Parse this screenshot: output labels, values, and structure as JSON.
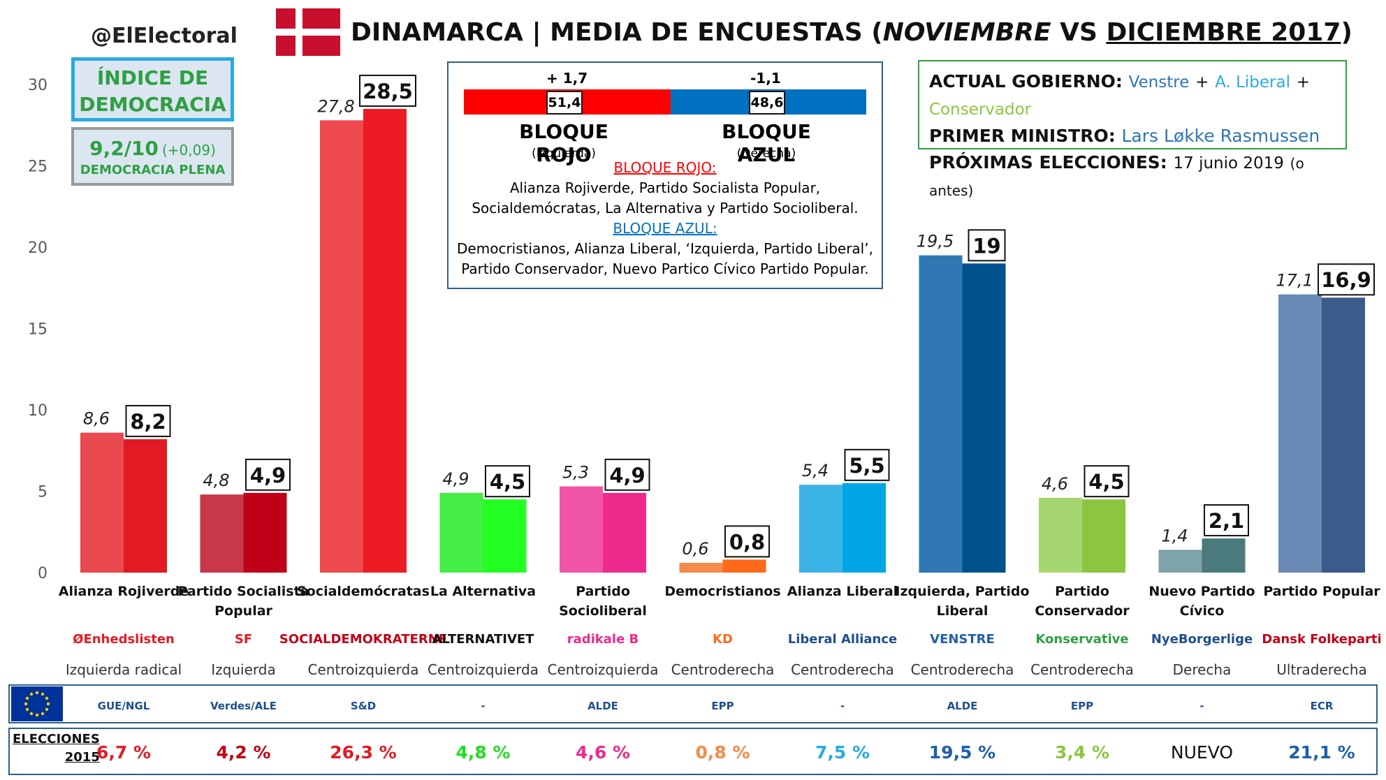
{
  "header": {
    "handle": "@ElElectoral",
    "title_main": "DINAMARCA | MEDIA DE ENCUESTAS (",
    "title_nov": "NOVIEMBRE",
    "title_vs": " VS ",
    "title_dec": "DICIEMBRE 2017",
    "title_close": ")"
  },
  "democracy": {
    "title": "ÍNDICE DE DEMOCRACIA",
    "score": "9,2/10",
    "delta": "(+0,09)",
    "label": "DEMOCRACIA PLENA"
  },
  "blocs": {
    "red_change": "+ 1,7",
    "blue_change": "-1,1",
    "red_value": "51,4",
    "blue_value": "48,6",
    "red_share": 51.4,
    "red_name": "BLOQUE ROJO",
    "blue_name": "BLOQUE AZUL",
    "red_sub": "(Izquierda)",
    "blue_sub": "(Derecha)",
    "red_heading": "BLOQUE ROJO:",
    "red_members_1": "Alianza Rojiverde, Partido Socialista Popular,",
    "red_members_2": "Socialdemócratas, La Alternativa y Partido Socioliberal.",
    "blue_heading": "BLOQUE AZUL:",
    "blue_members_1": "Democristianos, Alianza Liberal, ‘Izquierda, Partido Liberal’,",
    "blue_members_2": "Partido Conservador, Nuevo Partico Cívico Partido Popular.",
    "red_color": "#ff0000",
    "blue_color": "#0070c0"
  },
  "government": {
    "gov_label": "ACTUAL GOBIERNO:",
    "gov_p1": "Venstre",
    "gov_plus": "+",
    "gov_p2": "A. Liberal",
    "gov_p3": "Conservador",
    "pm_label": "PRIMER MINISTRO:",
    "pm_name": "Lars Løkke Rasmussen",
    "next_label": "PRÓXIMAS ELECCIONES:",
    "next_date": "17 junio 2019",
    "next_note": "(o antes)"
  },
  "chart_data": {
    "type": "bar",
    "ylim": [
      0,
      30
    ],
    "yticks": [
      0,
      5,
      10,
      15,
      20,
      25,
      30
    ],
    "categories": [
      [
        "Alianza Rojiverde"
      ],
      [
        "Partido Socialista",
        "Popular"
      ],
      [
        "Socialdemócratas"
      ],
      [
        "La Alternativa"
      ],
      [
        "Partido",
        "Socioliberal"
      ],
      [
        "Democristianos"
      ],
      [
        "Alianza Liberal"
      ],
      [
        "Izquierda, Partido",
        "Liberal"
      ],
      [
        "Partido",
        "Conservador"
      ],
      [
        "Nuevo Partido",
        "Cívico"
      ],
      [
        "Partido Popular"
      ]
    ],
    "series": [
      {
        "name": "NOVIEMBRE",
        "values": [
          8.6,
          4.8,
          27.8,
          4.9,
          5.3,
          0.6,
          5.4,
          19.5,
          4.6,
          1.4,
          17.1
        ],
        "labels": [
          "8,6",
          "4,8",
          "27,8",
          "4,9",
          "5,3",
          "0,6",
          "5,4",
          "19,5",
          "4,6",
          "1,4",
          "17,1"
        ]
      },
      {
        "name": "DICIEMBRE 2017",
        "values": [
          8.2,
          4.9,
          28.5,
          4.5,
          4.9,
          0.8,
          5.5,
          19.0,
          4.5,
          2.1,
          16.9
        ],
        "labels": [
          "8,2",
          "4,9",
          "28,5",
          "4,5",
          "4,9",
          "0,8",
          "5,5",
          "19",
          "4,5",
          "2,1",
          "16,9"
        ]
      }
    ],
    "colors_nov": [
      "#e84a4f",
      "#c8374a",
      "#ee4a4e",
      "#44ee44",
      "#f055a8",
      "#f58a4a",
      "#3db4e8",
      "#2f78b4",
      "#a6d672",
      "#7ea3a8",
      "#6a88b4"
    ],
    "colors_dec": [
      "#e21a24",
      "#c00018",
      "#ed1c24",
      "#22ff22",
      "#ee2a8c",
      "#ff6a1a",
      "#00a6e4",
      "#00528c",
      "#8cc63f",
      "#4a7a7c",
      "#3b5b8c"
    ],
    "logos": [
      "ØEnhedslisten",
      "SF",
      "SOCIALDEMOKRATERNE",
      "ALTERNATIVET",
      "radikale B",
      "KD",
      "Liberal Alliance",
      "VENSTRE",
      "Konservative",
      "NyeBorgerlige",
      "Dansk Folkeparti"
    ],
    "logo_colors": [
      "#e21a24",
      "#e21a24",
      "#c00018",
      "#111111",
      "#ee2a8c",
      "#ff6a1a",
      "#1f4f8c",
      "#1f5fa8",
      "#2ea043",
      "#1f4f8c",
      "#c00018"
    ],
    "ideology": [
      "Izquierda radical",
      "Izquierda",
      "Centroizquierda",
      "Centroizquierda",
      "Centroizquierda",
      "Centroderecha",
      "Centroderecha",
      "Centroderecha",
      "Centroderecha",
      "Derecha",
      "Ultraderecha"
    ],
    "eu_groups": [
      "GUE/NGL",
      "Verdes/ALE",
      "S&D",
      "-",
      "ALDE",
      "EPP",
      "-",
      "ALDE",
      "EPP",
      "-",
      "ECR"
    ],
    "elections_label": [
      "ELECCIONES",
      "2015"
    ],
    "elections_2015": [
      "6,7 %",
      "4,2 %",
      "26,3 %",
      "4,8 %",
      "4,6 %",
      "0,8 %",
      "7,5 %",
      "19,5 %",
      "3,4 %",
      "NUEVO",
      "21,1 %"
    ],
    "elections_colors": [
      "#e21a24",
      "#c00018",
      "#e21a24",
      "#22dd22",
      "#ee2a8c",
      "#f58a4a",
      "#29abe2",
      "#1f5fa8",
      "#8cc63f",
      "#111111",
      "#1f5fa8"
    ]
  }
}
